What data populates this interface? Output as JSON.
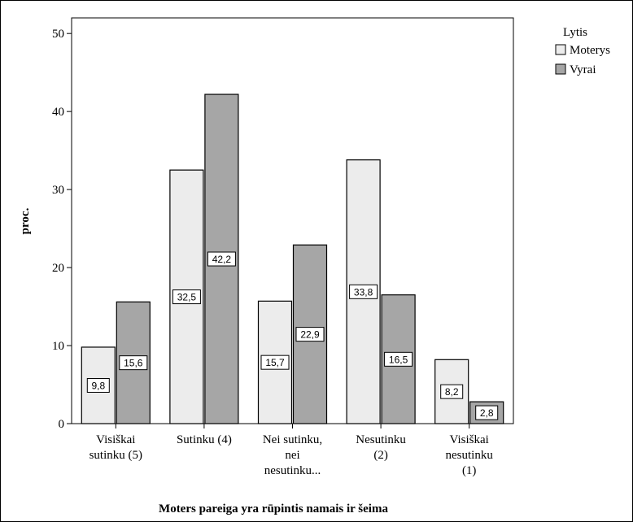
{
  "chart_data": {
    "type": "bar",
    "xlabel": "Moters pareiga yra rūpintis namais ir šeima",
    "ylabel": "proc.",
    "ylim": [
      0,
      52
    ],
    "yticks": [
      0,
      10,
      20,
      30,
      40,
      50
    ],
    "grid": false,
    "legend_position": "top-right",
    "legend_title": "Lytis",
    "categories": [
      [
        "Visiškai",
        "sutinku (5)"
      ],
      [
        "Sutinku (4)"
      ],
      [
        "Nei sutinku,",
        "nei",
        "nesutinku..."
      ],
      [
        "Nesutinku",
        "(2)"
      ],
      [
        "Visiškai",
        "nesutinku",
        "(1)"
      ]
    ],
    "series": [
      {
        "name": "Moterys",
        "color": "#ececec",
        "values": [
          9.8,
          32.5,
          15.7,
          33.8,
          8.2
        ],
        "labels": [
          "9,8",
          "32,5",
          "15,7",
          "33,8",
          "8,2"
        ]
      },
      {
        "name": "Vyrai",
        "color": "#a6a6a6",
        "values": [
          15.6,
          42.2,
          22.9,
          16.5,
          2.8
        ],
        "labels": [
          "15,6",
          "42,2",
          "22,9",
          "16,5",
          "2,8"
        ]
      }
    ]
  }
}
